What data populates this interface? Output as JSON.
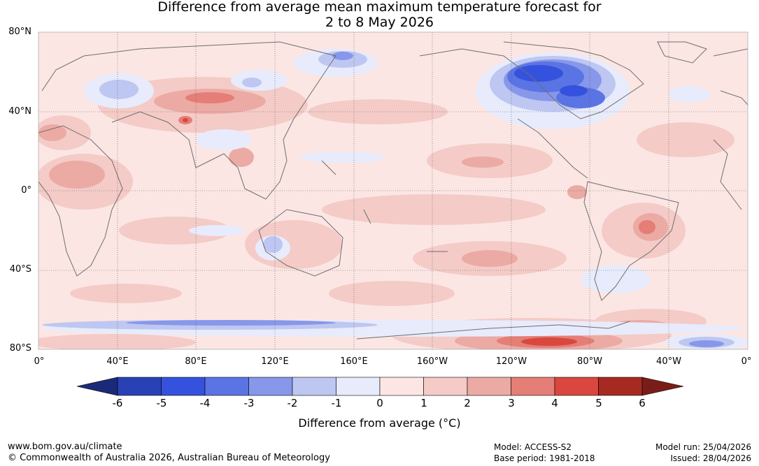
{
  "title": {
    "line1": "Difference from average mean maximum temperature forecast for",
    "line2": "2 to 8 May 2026"
  },
  "map": {
    "lat_labels": [
      "80°N",
      "40°N",
      "0°",
      "40°S",
      "80°S"
    ],
    "lon_labels": [
      "0°",
      "40°E",
      "80°E",
      "120°E",
      "160°E",
      "160°W",
      "120°W",
      "80°W",
      "40°W",
      "0°"
    ]
  },
  "legend": {
    "ticks": [
      "-6",
      "-5",
      "-4",
      "-3",
      "-2",
      "-1",
      "0",
      "1",
      "2",
      "3",
      "4",
      "5",
      "6"
    ],
    "colors": [
      "#1b2a78",
      "#2a41b6",
      "#3552de",
      "#5a74e4",
      "#8797ea",
      "#bec7f1",
      "#e8ebfb",
      "#fbe6e4",
      "#f4cbc7",
      "#ecaaa4",
      "#e47e76",
      "#d9473e",
      "#a62a22",
      "#7a1d18"
    ],
    "label": "Difference from average (°C)"
  },
  "footer": {
    "website": "www.bom.gov.au/climate",
    "copyright": "© Commonwealth of Australia 2026, Australian Bureau of Meteorology",
    "model": "Model: ACCESS-S2",
    "base_period": "Base period: 1981-2018",
    "model_run": "Model run: 25/04/2026",
    "issued": "Issued: 28/04/2026"
  }
}
